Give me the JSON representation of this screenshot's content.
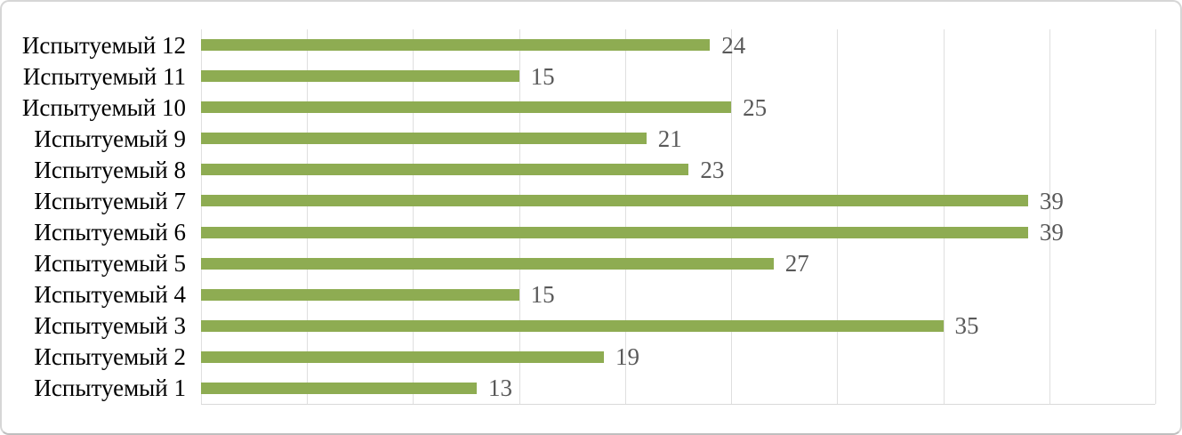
{
  "chart_data": {
    "type": "bar",
    "orientation": "horizontal",
    "title": "",
    "xlabel": "",
    "ylabel": "",
    "categories": [
      "Испытуемый 1",
      "Испытуемый 2",
      "Испытуемый 3",
      "Испытуемый 4",
      "Испытуемый 5",
      "Испытуемый 6",
      "Испытуемый 7",
      "Испытуемый 8",
      "Испытуемый 9",
      "Испытуемый 10",
      "Испытуемый 11",
      "Испытуемый 12"
    ],
    "values": [
      13,
      19,
      35,
      15,
      27,
      39,
      39,
      23,
      21,
      25,
      15,
      24
    ],
    "data_labels_visible": true,
    "xlim": [
      0,
      45
    ],
    "grid_step": 5,
    "grid": true,
    "legend": false,
    "category_axis_side": "left",
    "category_order_on_screen": "last category at top, first at bottom",
    "colors": {
      "bar": "#8EAC52",
      "gridline": "#DFDFDF",
      "axis_line": "#D9D9D9",
      "category_label": "#000000",
      "value_label": "#595959",
      "background": "#FFFFFF",
      "card_border": "#D6D6D6"
    }
  }
}
